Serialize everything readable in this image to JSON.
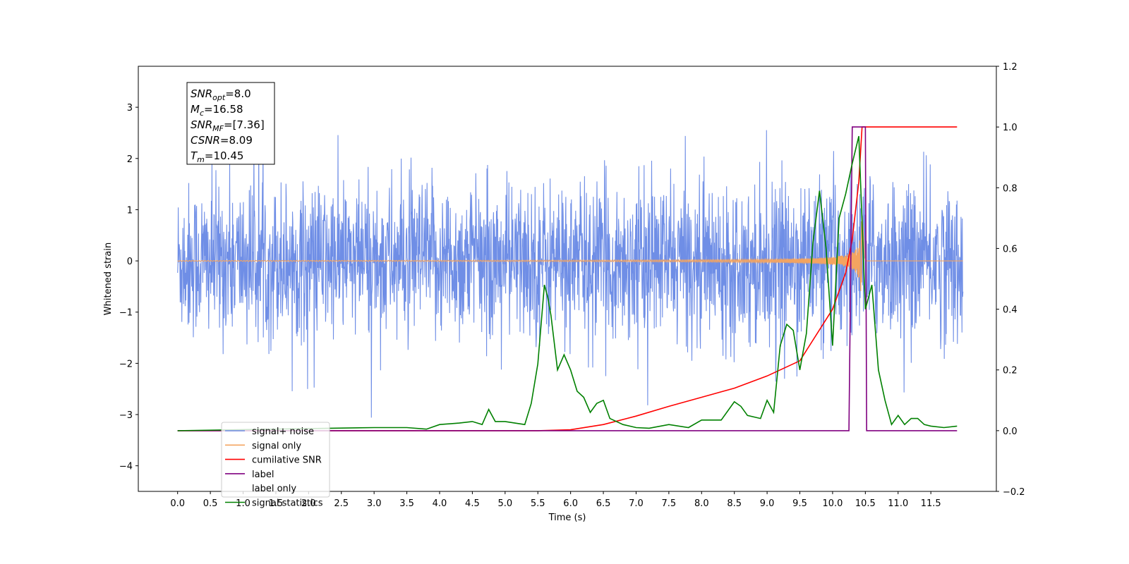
{
  "chart_data": {
    "type": "line",
    "xlabel": "Time (s)",
    "ylabel": "Whitened strain",
    "xlim": [
      -0.6,
      12.5
    ],
    "ylim": [
      -4.5,
      3.8
    ],
    "y2lim": [
      -0.2,
      1.2
    ],
    "x_ticks": [
      "0.0",
      "0.5",
      "1.0",
      "1.5",
      "2.0",
      "2.5",
      "3.0",
      "3.5",
      "4.0",
      "4.5",
      "5.0",
      "5.5",
      "6.0",
      "6.5",
      "7.0",
      "7.5",
      "8.0",
      "8.5",
      "9.0",
      "9.5",
      "10.0",
      "10.5",
      "11.0",
      "11.5"
    ],
    "y_ticks": [
      -4,
      -3,
      -2,
      -1,
      0,
      1,
      2,
      3
    ],
    "y_tick_labels": [
      "−4",
      "−3",
      "−2",
      "−1",
      "0",
      "1",
      "2",
      "3"
    ],
    "y2_ticks": [
      "−0.2",
      "0.0",
      "0.2",
      "0.4",
      "0.6",
      "0.8",
      "1.0",
      "1.2"
    ],
    "legend_position": "lower left",
    "info_box": [
      {
        "var": "SNR",
        "sub": "opt",
        "value": "=8.0"
      },
      {
        "var": "M",
        "sub": "c",
        "value": "=16.58"
      },
      {
        "var": "SNR",
        "sub": "MF",
        "value": "=[7.36]"
      },
      {
        "var": "CSNR",
        "sub": "",
        "value": "=8.09"
      },
      {
        "var": "T",
        "sub": "m",
        "value": "=10.45"
      }
    ],
    "series": [
      {
        "name": "signal+ noise",
        "axis": "left",
        "color": "#6f8ee6",
        "note_noise_std": 0.75
      },
      {
        "name": "signal only",
        "axis": "left",
        "color": "#f4a460",
        "merger_time": 10.45
      },
      {
        "name": "cumilative SNR",
        "axis": "right",
        "color": "#ff0000",
        "x": [
          0.0,
          5.5,
          6.0,
          6.5,
          7.0,
          7.5,
          8.0,
          8.5,
          9.0,
          9.5,
          10.0,
          10.2,
          10.3,
          10.4,
          10.45,
          10.5,
          11.9
        ],
        "values": [
          0.0,
          0.0,
          0.003,
          0.02,
          0.048,
          0.08,
          0.11,
          0.14,
          0.18,
          0.23,
          0.4,
          0.52,
          0.63,
          0.82,
          1.0,
          1.0,
          1.0
        ]
      },
      {
        "name": "label",
        "axis": "right",
        "color": "#800080",
        "x": [
          0.0,
          10.25,
          10.3,
          10.5,
          10.52,
          11.9
        ],
        "values": [
          0.0,
          0.0,
          1.0,
          1.0,
          0.0,
          0.0
        ]
      },
      {
        "name": "label only",
        "axis": "right",
        "color": "#ffffff"
      },
      {
        "name": "signal statistics",
        "axis": "right",
        "color": "#008000",
        "x": [
          0.0,
          3.0,
          3.5,
          3.8,
          4.0,
          4.3,
          4.5,
          4.65,
          4.75,
          4.85,
          5.0,
          5.3,
          5.4,
          5.5,
          5.6,
          5.65,
          5.7,
          5.8,
          5.9,
          6.0,
          6.1,
          6.2,
          6.3,
          6.4,
          6.5,
          6.6,
          6.8,
          7.0,
          7.2,
          7.5,
          7.8,
          8.0,
          8.3,
          8.5,
          8.6,
          8.7,
          8.9,
          9.0,
          9.1,
          9.2,
          9.3,
          9.4,
          9.5,
          9.6,
          9.7,
          9.8,
          9.9,
          10.0,
          10.1,
          10.2,
          10.3,
          10.4,
          10.5,
          10.6,
          10.7,
          10.8,
          10.9,
          11.0,
          11.1,
          11.2,
          11.3,
          11.4,
          11.5,
          11.7,
          11.9
        ],
        "values": [
          0.0,
          0.01,
          0.01,
          0.005,
          0.02,
          0.025,
          0.03,
          0.02,
          0.07,
          0.03,
          0.03,
          0.02,
          0.09,
          0.22,
          0.48,
          0.44,
          0.38,
          0.2,
          0.25,
          0.2,
          0.13,
          0.11,
          0.06,
          0.09,
          0.1,
          0.04,
          0.02,
          0.01,
          0.008,
          0.02,
          0.01,
          0.035,
          0.035,
          0.095,
          0.08,
          0.05,
          0.04,
          0.1,
          0.06,
          0.28,
          0.35,
          0.33,
          0.2,
          0.32,
          0.62,
          0.79,
          0.6,
          0.28,
          0.7,
          0.78,
          0.88,
          0.97,
          0.4,
          0.48,
          0.2,
          0.1,
          0.02,
          0.05,
          0.02,
          0.04,
          0.04,
          0.02,
          0.015,
          0.01,
          0.015
        ]
      }
    ]
  }
}
